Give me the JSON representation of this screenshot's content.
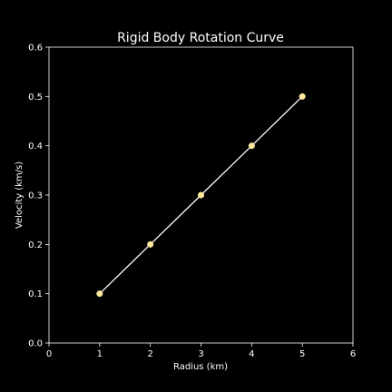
{
  "chart_data": {
    "type": "line",
    "title": "Rigid Body Rotation Curve",
    "xlabel": "Radius (km)",
    "ylabel": "Velocity (km/s)",
    "xlim": [
      0,
      6
    ],
    "ylim": [
      0,
      0.6
    ],
    "xticks": [
      0,
      1,
      2,
      3,
      4,
      5,
      6
    ],
    "yticks": [
      0.0,
      0.1,
      0.2,
      0.3,
      0.4,
      0.5,
      0.6
    ],
    "xtick_labels": [
      "0",
      "1",
      "2",
      "3",
      "4",
      "5",
      "6"
    ],
    "ytick_labels": [
      "0.0",
      "0.1",
      "0.2",
      "0.3",
      "0.4",
      "0.5",
      "0.6"
    ],
    "grid": false,
    "series": [
      {
        "x": [
          1,
          2,
          3,
          4,
          5
        ],
        "values": [
          0.1,
          0.2,
          0.3,
          0.4,
          0.5
        ],
        "line_color": "#ffffff",
        "marker_color": "#ffe89a"
      }
    ],
    "background_color": "#000000",
    "axes_color": "#ffffff"
  }
}
